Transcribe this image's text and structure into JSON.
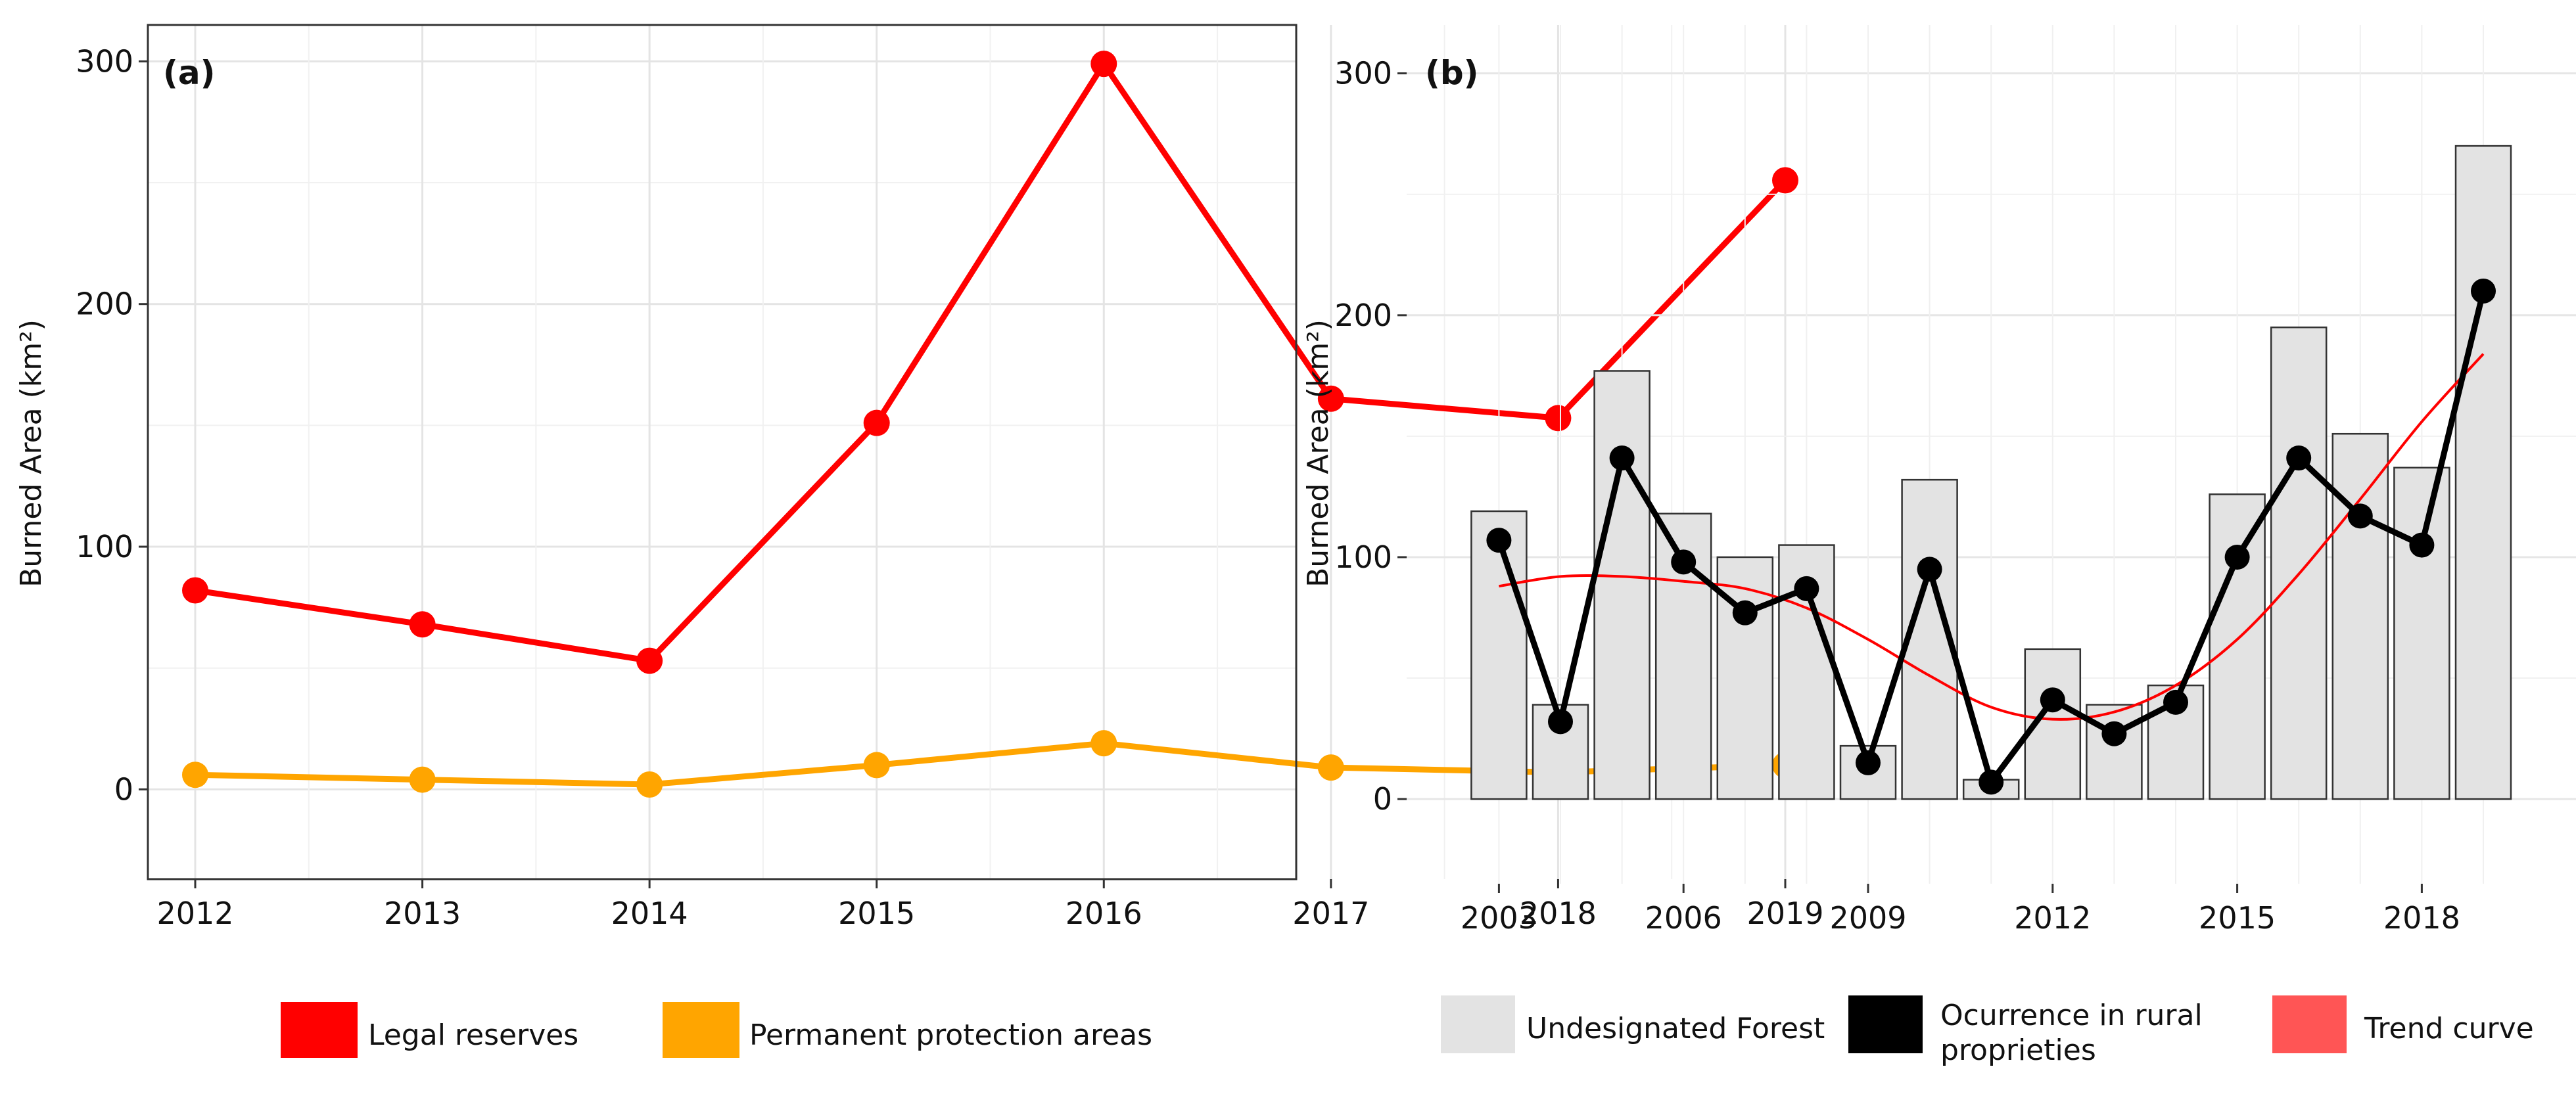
{
  "chart_data": [
    {
      "type": "line",
      "panel_label": "(a)",
      "ylabel": "Burned Area (km²)",
      "xlabel": "",
      "x": [
        2012,
        2013,
        2014,
        2015,
        2016,
        2017,
        2018,
        2019
      ],
      "x_tick_labels": [
        "2012",
        "2013",
        "2014",
        "2015",
        "2016",
        "2017",
        "2018",
        "2019"
      ],
      "y_ticks": [
        0,
        100,
        200,
        300
      ],
      "y_tick_labels": [
        "0",
        "100",
        "200",
        "300"
      ],
      "ylim": [
        -37,
        315
      ],
      "series": [
        {
          "name": "Legal reserves",
          "color": "#ff0000",
          "values": [
            82,
            68,
            53,
            151,
            299,
            161,
            153,
            251
          ]
        },
        {
          "name": "Permanent protection areas",
          "color": "#ffa500",
          "values": [
            6,
            4,
            2,
            10,
            19,
            9,
            7,
            10
          ]
        }
      ],
      "legend": [
        {
          "label": "Legal reserves",
          "color": "#ff0000"
        },
        {
          "label": "Permanent protection areas",
          "color": "#ffa500"
        }
      ],
      "grid": true
    },
    {
      "type": "bar",
      "panel_label": "(b)",
      "ylabel": "Burned Area (km²)",
      "xlabel": "",
      "x": [
        2003,
        2004,
        2005,
        2006,
        2007,
        2008,
        2009,
        2010,
        2011,
        2012,
        2013,
        2014,
        2015,
        2016,
        2017,
        2018,
        2019
      ],
      "x_ticks": [
        2003,
        2006,
        2009,
        2012,
        2015,
        2018
      ],
      "x_tick_labels": [
        "2003",
        "2006",
        "2009",
        "2012",
        "2015",
        "2018"
      ],
      "y_ticks": [
        0,
        100,
        200,
        300
      ],
      "y_tick_labels": [
        "0",
        "100",
        "200",
        "300"
      ],
      "ylim": [
        -35,
        320
      ],
      "xlim": [
        2001.5,
        2020.5
      ],
      "series": [
        {
          "name": "Undesignated Forest",
          "kind": "bar",
          "color": "#e3e3e3",
          "values": [
            119,
            39,
            177,
            118,
            100,
            105,
            22,
            132,
            8,
            62,
            39,
            47,
            126,
            195,
            151,
            137,
            270
          ]
        },
        {
          "name": "Ocurrence in rural proprieties",
          "kind": "line",
          "color": "#000000",
          "values": [
            107,
            32,
            141,
            98,
            77,
            87,
            15,
            95,
            7,
            41,
            27,
            40,
            100,
            141,
            117,
            105,
            210
          ]
        },
        {
          "name": "Trend curve",
          "kind": "smooth",
          "color": "#ff0000",
          "values": [
            88,
            92,
            92,
            90,
            87,
            79,
            66,
            51,
            38,
            33,
            36,
            47,
            66,
            93,
            124,
            156,
            184
          ]
        }
      ],
      "legend": [
        {
          "label": "Undesignated Forest",
          "color": "#e3e3e3"
        },
        {
          "label_line1": "Ocurrence     in     rural",
          "label_line2": "proprieties",
          "color": "#000000"
        },
        {
          "label": "Trend curve",
          "color": "#ff5555"
        }
      ],
      "grid": true
    }
  ]
}
